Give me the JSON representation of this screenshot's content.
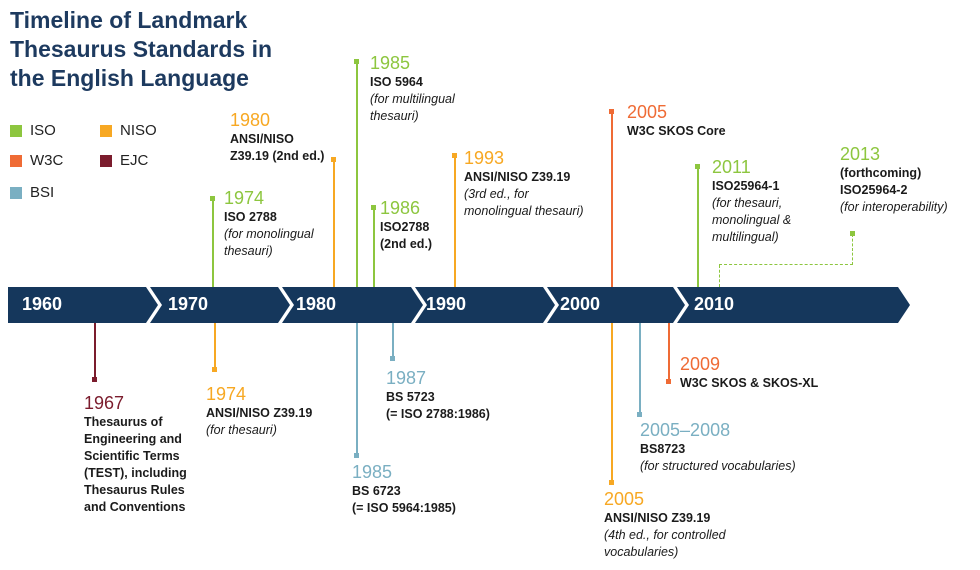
{
  "title": "Timeline of Landmark Thesaurus Standards in the English Language",
  "colors": {
    "iso": "#8dc63f",
    "niso": "#f7a823",
    "w3c": "#ef6b35",
    "ejc": "#7b1c2d",
    "bsi": "#7aafc2",
    "band": "#15375c"
  },
  "legend": [
    {
      "key": "iso",
      "label": "ISO"
    },
    {
      "key": "niso",
      "label": "NISO"
    },
    {
      "key": "w3c",
      "label": "W3C"
    },
    {
      "key": "ejc",
      "label": "EJC"
    },
    {
      "key": "bsi",
      "label": "BSI"
    }
  ],
  "decades": [
    "1960",
    "1970",
    "1980",
    "1990",
    "2000",
    "2010"
  ],
  "events": {
    "e1967": {
      "year": "1967",
      "lines": [
        "Thesaurus of",
        "Engineering and",
        "Scientific Terms",
        "(TEST), including",
        "Thesaurus Rules",
        "and Conventions"
      ]
    },
    "e1974b": {
      "year": "1974",
      "lines": [
        "ANSI/NISO Z39.19",
        "(for thesauri)"
      ]
    },
    "e1974a": {
      "year": "1974",
      "lines": [
        "ISO 2788",
        "(for monolingual",
        "thesauri)"
      ]
    },
    "e1980": {
      "year": "1980",
      "lines": [
        "ANSI/NISO",
        "Z39.19 (2nd ed.)"
      ]
    },
    "e1985a": {
      "year": "1985",
      "lines": [
        "ISO 5964",
        "(for multilingual",
        "thesauri)"
      ]
    },
    "e1986": {
      "year": "1986",
      "lines": [
        "ISO2788",
        "(2nd ed.)"
      ]
    },
    "e1985b": {
      "year": "1985",
      "lines": [
        "BS 6723",
        "(= ISO 5964:1985)"
      ]
    },
    "e1987": {
      "year": "1987",
      "lines": [
        "BS 5723",
        "(= ISO 2788:1986)"
      ]
    },
    "e1993": {
      "year": "1993",
      "lines": [
        "ANSI/NISO Z39.19",
        "(3rd ed., for",
        "monolingual thesauri)"
      ]
    },
    "e2005a": {
      "year": "2005",
      "lines": [
        "W3C SKOS Core"
      ]
    },
    "e2011": {
      "year": "2011",
      "lines": [
        "ISO25964-1",
        "(for thesauri,",
        "monolingual &",
        "multilingual)"
      ]
    },
    "e2013": {
      "year": "2013",
      "lines": [
        "(forthcoming)",
        "ISO25964-2",
        "(for interoperability)"
      ]
    },
    "e2009": {
      "year": "2009",
      "lines": [
        "W3C SKOS & SKOS-XL"
      ]
    },
    "e2005c": {
      "year": "2005–2008",
      "lines": [
        "BS8723",
        "(for structured vocabularies)"
      ]
    },
    "e2005b": {
      "year": "2005",
      "lines": [
        "ANSI/NISO Z39.19",
        "(4th ed., for controlled",
        "vocabularies)"
      ]
    }
  }
}
